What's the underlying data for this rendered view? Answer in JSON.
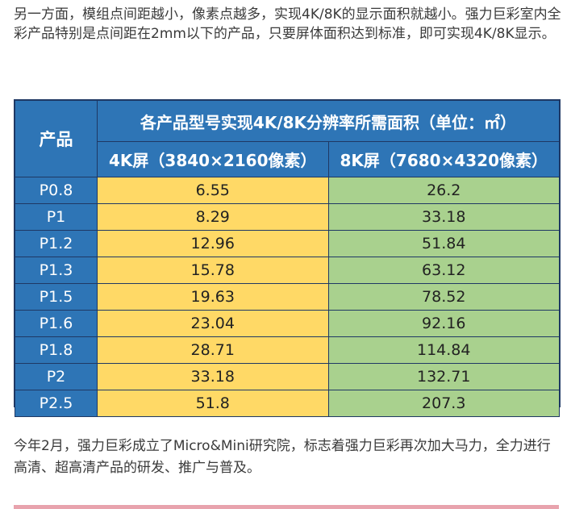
{
  "intro_text": "另一方面，模组点间距越小，像素点越多，实现4K/8K的显示面积就越小。强力巨彩室内全彩产品特别是点间距在2mm以下的产品，只要屏体面积达到标准，即可实现4K/8K显示。",
  "table": {
    "product_header": "产品",
    "group_header": "各产品型号实现4K/8K分辨率所需面积（单位：㎡）",
    "col_4k_header": "4K屏（3840×2160像素）",
    "col_8k_header": "8K屏（7680×4320像素）",
    "rows": [
      {
        "product": "P0.8",
        "area_4k": "6.55",
        "area_8k": "26.2"
      },
      {
        "product": "P1",
        "area_4k": "8.29",
        "area_8k": "33.18"
      },
      {
        "product": "P1.2",
        "area_4k": "12.96",
        "area_8k": "51.84"
      },
      {
        "product": "P1.3",
        "area_4k": "15.78",
        "area_8k": "63.12"
      },
      {
        "product": "P1.5",
        "area_4k": "19.63",
        "area_8k": "78.52"
      },
      {
        "product": "P1.6",
        "area_4k": "23.04",
        "area_8k": "92.16"
      },
      {
        "product": "P1.8",
        "area_4k": "28.71",
        "area_8k": "114.84"
      },
      {
        "product": "P2",
        "area_4k": "33.18",
        "area_8k": "132.71"
      },
      {
        "product": "P2.5",
        "area_4k": "51.8",
        "area_8k": "207.3"
      }
    ]
  },
  "outro_text": "今年2月，强力巨彩成立了Micro&Mini研究院，标志着强力巨彩再次加大马力，全力进行高清、超高清产品的研发、推广与普及。",
  "colors": {
    "header_blue": "#2e75b6",
    "cell_4k": "#ffd966",
    "cell_8k": "#a9d18e"
  }
}
